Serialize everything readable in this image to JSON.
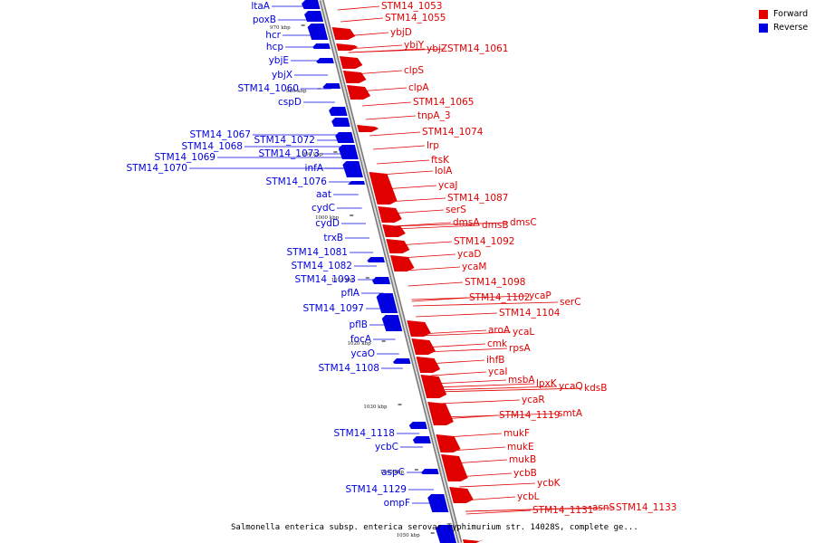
{
  "legend": {
    "forward_label": "Forward",
    "reverse_label": "Reverse",
    "forward_color": "#e00000",
    "reverse_color": "#0000e0"
  },
  "caption": "Salmonella enterica subsp. enterica serovar Typhimurium str. 14028S, complete ge...",
  "ticks": [
    "970 kbp",
    "980 kbp",
    "990 kbp",
    "1000 kbp",
    "1010 kbp",
    "1020 kbp",
    "1030 kbp",
    "1040 kbp",
    "1050 kbp"
  ],
  "reverse_genes": [
    "ltaA",
    "poxB",
    "hcr",
    "hcp",
    "ybjE",
    "ybjX",
    "STM14_1060",
    "cspD",
    "STM14_1067",
    "STM14_1068",
    "STM14_1069",
    "STM14_1070",
    "STM14_1072",
    "STM14_1073",
    "infA",
    "STM14_1076",
    "aat",
    "cydC",
    "cydD",
    "trxB",
    "STM14_1081",
    "STM14_1082",
    "STM14_1093",
    "pflA",
    "STM14_1097",
    "pflB",
    "focA",
    "ycaO",
    "STM14_1108",
    "STM14_1118",
    "ycbC",
    "aspC",
    "STM14_1129",
    "ompF"
  ],
  "forward_genes": [
    "STM14_1053",
    "STM14_1055",
    "ybjD",
    "ybjY",
    "ybjZ",
    "STM14_1061",
    "clpS",
    "clpA",
    "STM14_1065",
    "tnpA_3",
    "STM14_1074",
    "lrp",
    "ftsK",
    "lolA",
    "ycaJ",
    "STM14_1087",
    "serS",
    "dmsA",
    "dmsB",
    "dmsC",
    "STM14_1092",
    "ycaD",
    "ycaM",
    "STM14_1098",
    "STM14_1102",
    "ycaP",
    "serC",
    "STM14_1104",
    "aroA",
    "ycaL",
    "cmk",
    "rpsA",
    "ihfB",
    "ycaI",
    "msbA",
    "lpxK",
    "ycaQ",
    "kdsB",
    "ycaR",
    "STM14_1119",
    "smtA",
    "mukF",
    "mukE",
    "mukB",
    "ycbB",
    "ycbK",
    "ycbL",
    "STM14_1131",
    "asnS",
    "STM14_1133"
  ]
}
